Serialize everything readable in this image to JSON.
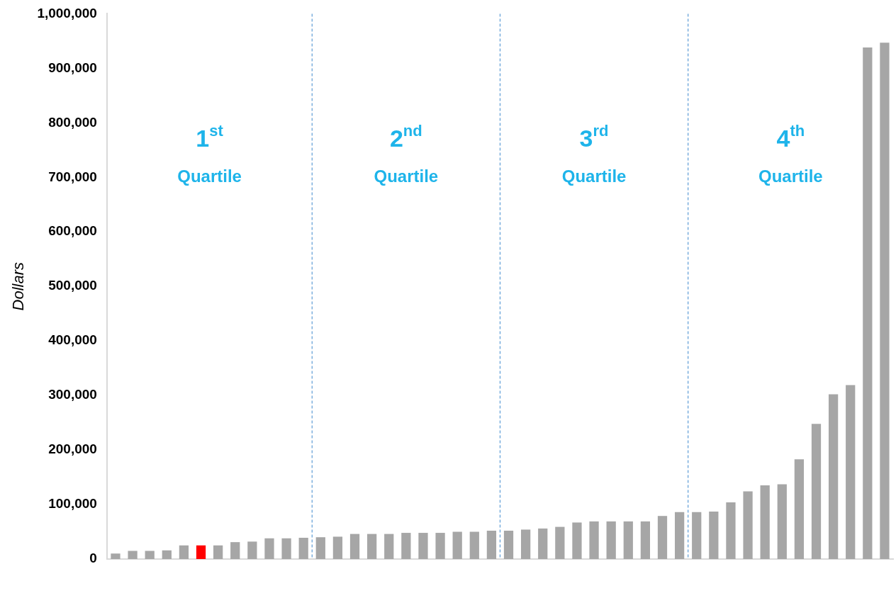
{
  "chart_data": {
    "type": "bar",
    "ylabel": "Dollars",
    "categories": [
      null,
      null,
      null,
      null,
      null,
      null,
      null,
      null,
      null,
      null,
      null,
      null,
      null,
      null,
      null,
      null,
      null,
      null,
      null,
      null,
      null,
      null,
      null,
      null,
      null,
      null,
      null,
      null,
      null,
      null,
      null,
      null,
      null,
      null,
      null,
      null,
      null,
      null,
      null,
      null,
      null,
      null,
      null,
      null,
      null,
      null
    ],
    "values": [
      10000,
      15000,
      15000,
      16000,
      25000,
      25000,
      25000,
      31000,
      32000,
      38000,
      38000,
      39000,
      40000,
      41000,
      46000,
      46000,
      46000,
      48000,
      48000,
      48000,
      50000,
      50000,
      52000,
      52000,
      54000,
      56000,
      59000,
      67000,
      69000,
      69000,
      69000,
      69000,
      79000,
      86000,
      86000,
      87000,
      104000,
      124000,
      135000,
      137000,
      183000,
      248000,
      302000,
      319000,
      938000,
      947000
    ],
    "colors": [
      "#a6a6a6",
      "#a6a6a6",
      "#a6a6a6",
      "#a6a6a6",
      "#a6a6a6",
      "#ff0000",
      "#a6a6a6",
      "#a6a6a6",
      "#a6a6a6",
      "#a6a6a6",
      "#a6a6a6",
      "#a6a6a6",
      "#a6a6a6",
      "#a6a6a6",
      "#a6a6a6",
      "#a6a6a6",
      "#a6a6a6",
      "#a6a6a6",
      "#a6a6a6",
      "#a6a6a6",
      "#a6a6a6",
      "#a6a6a6",
      "#a6a6a6",
      "#a6a6a6",
      "#a6a6a6",
      "#a6a6a6",
      "#a6a6a6",
      "#a6a6a6",
      "#a6a6a6",
      "#a6a6a6",
      "#a6a6a6",
      "#a6a6a6",
      "#a6a6a6",
      "#a6a6a6",
      "#a6a6a6",
      "#a6a6a6",
      "#a6a6a6",
      "#a6a6a6",
      "#a6a6a6",
      "#a6a6a6",
      "#a6a6a6",
      "#a6a6a6",
      "#a6a6a6",
      "#a6a6a6",
      "#a6a6a6",
      "#a6a6a6"
    ],
    "ylim": [
      0,
      1000000
    ],
    "yticks": [
      0,
      {
        "value": 100000,
        "label": "100,000"
      },
      {
        "value": 200000,
        "label": "200,000"
      },
      {
        "value": 300000,
        "label": "300,000"
      },
      {
        "value": 400000,
        "label": "400,000"
      },
      {
        "value": 500000,
        "label": "500,000"
      },
      {
        "value": 600000,
        "label": "600,000"
      },
      {
        "value": 700000,
        "label": "700,000"
      },
      {
        "value": 800000,
        "label": "800,000"
      },
      {
        "value": 900000,
        "label": "900,000"
      },
      {
        "value": 1000000,
        "label": "1,000,000"
      }
    ],
    "tick_labels": "y",
    "annotations": [
      "1$^{st}$ Quartile",
      "2$^{nd}$ Quartile",
      "3$^{rd}$ Quartile",
      "4$^{th}$ Quartile"
    ],
    "grid": false,
    "legend": false
  }
}
